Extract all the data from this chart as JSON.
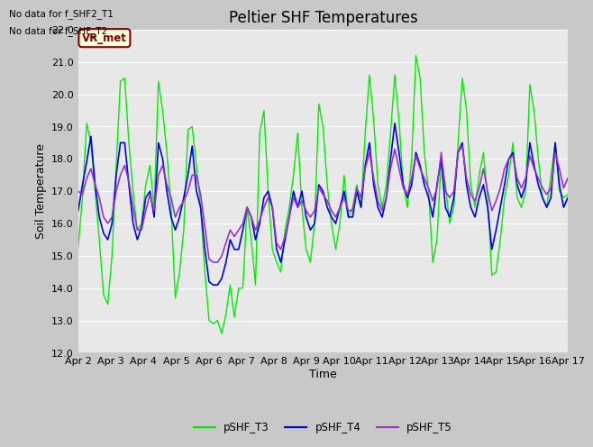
{
  "title": "Peltier SHF Temperatures",
  "ylabel": "Soil Temperature",
  "xlabel": "Time",
  "annotations": [
    "No data for f_SHF2_T1",
    "No data for f_SHF_T2"
  ],
  "vr_met_label": "VR_met",
  "ylim": [
    12.0,
    22.0
  ],
  "yticks": [
    12.0,
    13.0,
    14.0,
    15.0,
    16.0,
    17.0,
    18.0,
    19.0,
    20.0,
    21.0,
    22.0
  ],
  "xtick_labels": [
    "Apr 2",
    "Apr 3",
    "Apr 4",
    "Apr 5",
    "Apr 6",
    "Apr 7",
    "Apr 8",
    "Apr 9",
    "Apr 10",
    "Apr 11",
    "Apr 12",
    "Apr 13",
    "Apr 14",
    "Apr 15",
    "Apr 16",
    "Apr 17"
  ],
  "line_colors": {
    "pSHF_T3": "#00EE00",
    "pSHF_T4": "#0000EE",
    "pSHF_T5": "#9933CC"
  },
  "legend_labels": [
    "pSHF_T3",
    "pSHF_T4",
    "pSHF_T5"
  ],
  "fig_facecolor": "#C8C8C8",
  "plot_bg_color": "#E8E8E8",
  "grid_color": "#FFFFFF",
  "title_fontsize": 12,
  "label_fontsize": 9,
  "tick_fontsize": 8,
  "pSHF_T3": [
    15.3,
    16.8,
    19.1,
    18.5,
    17.0,
    15.5,
    13.8,
    13.5,
    15.0,
    17.8,
    20.4,
    20.5,
    18.5,
    17.0,
    15.8,
    16.0,
    17.2,
    17.8,
    16.5,
    20.4,
    19.5,
    18.2,
    16.5,
    13.7,
    14.5,
    15.8,
    18.9,
    19.0,
    17.8,
    16.5,
    14.5,
    13.0,
    12.9,
    13.0,
    12.6,
    13.2,
    14.1,
    13.1,
    14.0,
    14.0,
    16.5,
    15.5,
    14.1,
    18.8,
    19.5,
    17.0,
    15.2,
    14.8,
    14.5,
    15.8,
    16.5,
    17.5,
    18.8,
    16.5,
    15.2,
    14.8,
    16.0,
    19.7,
    19.0,
    17.2,
    16.0,
    15.2,
    16.0,
    17.5,
    16.2,
    16.5,
    17.2,
    16.5,
    18.8,
    20.6,
    19.2,
    17.2,
    16.5,
    17.2,
    18.8,
    20.6,
    19.2,
    17.2,
    16.5,
    18.0,
    21.2,
    20.5,
    18.2,
    17.0,
    14.8,
    15.5,
    18.0,
    17.2,
    16.0,
    16.5,
    18.5,
    20.5,
    19.5,
    17.2,
    16.5,
    17.5,
    18.2,
    16.8,
    14.4,
    14.5,
    15.5,
    16.8,
    17.5,
    18.5,
    16.8,
    16.5,
    17.0,
    20.3,
    19.5,
    18.0,
    16.8,
    16.5,
    17.5,
    18.5,
    17.0,
    16.8,
    16.9
  ],
  "pSHF_T4": [
    16.4,
    17.2,
    17.9,
    18.7,
    17.2,
    16.2,
    15.7,
    15.5,
    16.0,
    17.5,
    18.5,
    18.5,
    17.2,
    16.0,
    15.5,
    15.9,
    16.8,
    17.0,
    16.2,
    18.5,
    18.0,
    17.0,
    16.2,
    15.8,
    16.2,
    16.8,
    17.5,
    18.4,
    17.0,
    16.5,
    15.2,
    14.2,
    14.1,
    14.1,
    14.3,
    14.8,
    15.5,
    15.2,
    15.2,
    15.8,
    16.5,
    16.2,
    15.5,
    16.0,
    16.8,
    17.0,
    16.5,
    15.2,
    14.8,
    15.5,
    16.2,
    17.0,
    16.5,
    17.0,
    16.2,
    15.8,
    16.0,
    17.2,
    17.0,
    16.5,
    16.2,
    16.0,
    16.5,
    17.0,
    16.2,
    16.2,
    17.0,
    16.5,
    17.8,
    18.5,
    17.2,
    16.5,
    16.2,
    16.8,
    18.0,
    19.1,
    18.2,
    17.2,
    16.8,
    17.2,
    18.2,
    17.8,
    17.2,
    16.8,
    16.2,
    17.2,
    18.0,
    16.5,
    16.2,
    16.8,
    18.2,
    18.5,
    17.2,
    16.5,
    16.2,
    16.8,
    17.2,
    16.5,
    15.2,
    15.8,
    16.5,
    17.2,
    18.0,
    18.2,
    17.2,
    16.8,
    17.2,
    18.5,
    17.8,
    17.2,
    16.8,
    16.5,
    16.8,
    18.5,
    17.2,
    16.5,
    16.8
  ],
  "pSHF_T5": [
    17.0,
    16.9,
    17.4,
    17.7,
    17.2,
    16.8,
    16.2,
    16.0,
    16.2,
    17.0,
    17.5,
    17.8,
    17.3,
    16.5,
    15.8,
    15.8,
    16.4,
    16.9,
    16.4,
    17.5,
    17.8,
    17.2,
    16.8,
    16.2,
    16.5,
    16.7,
    17.0,
    17.5,
    17.5,
    16.9,
    15.9,
    14.9,
    14.8,
    14.8,
    15.0,
    15.4,
    15.8,
    15.6,
    15.8,
    16.0,
    16.5,
    16.2,
    15.8,
    16.1,
    16.5,
    16.8,
    16.5,
    15.4,
    15.2,
    15.6,
    16.2,
    16.8,
    16.5,
    16.7,
    16.4,
    16.2,
    16.4,
    17.1,
    16.9,
    16.7,
    16.4,
    16.2,
    16.5,
    16.8,
    16.4,
    16.4,
    17.1,
    16.8,
    17.7,
    18.2,
    17.4,
    16.7,
    16.4,
    16.8,
    17.7,
    18.3,
    17.7,
    17.1,
    16.9,
    17.4,
    18.1,
    17.7,
    17.4,
    17.1,
    16.7,
    17.1,
    18.2,
    17.0,
    16.8,
    17.0,
    18.2,
    18.4,
    17.4,
    16.9,
    16.7,
    17.1,
    17.7,
    17.0,
    16.4,
    16.7,
    17.1,
    17.7,
    18.0,
    18.1,
    17.4,
    17.1,
    17.4,
    18.1,
    17.7,
    17.4,
    17.1,
    16.9,
    17.1,
    18.2,
    17.7,
    17.1,
    17.4
  ]
}
